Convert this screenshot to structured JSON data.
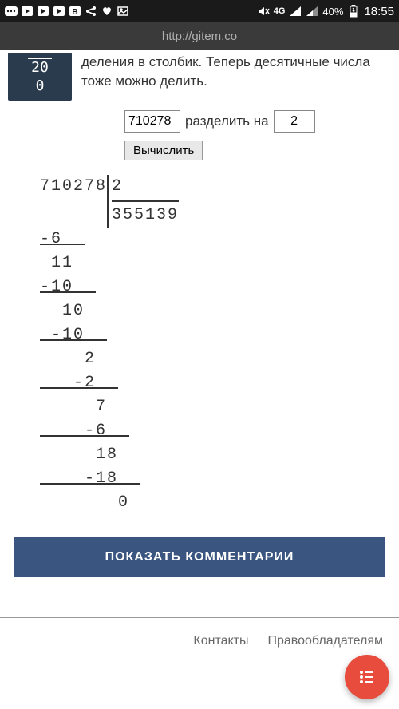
{
  "status": {
    "network": "4G",
    "battery": "40%",
    "time": "18:55"
  },
  "url": "http://gitem.co",
  "thumb": {
    "line1": "20",
    "line2": "0"
  },
  "intro_text": "десятичные числа тоже можно делить.",
  "intro_prefix": "деления в столбик. Теперь",
  "form": {
    "dividend": "710278",
    "label": "разделить на",
    "divisor": "2",
    "calc_label": "Вычислить"
  },
  "division": {
    "dividend": "710278",
    "divisor": "2",
    "quotient": "355139",
    "steps": [
      {
        "sub": "-6",
        "indent": 0,
        "bring": "11",
        "bindent": 1
      },
      {
        "sub": "-10",
        "indent": 0,
        "bring": "10",
        "bindent": 2
      },
      {
        "sub": "-10",
        "indent": 1,
        "bring": "2",
        "bindent": 4
      },
      {
        "sub": "-2",
        "indent": 3,
        "bring": "7",
        "bindent": 5
      },
      {
        "sub": "-6",
        "indent": 4,
        "bring": "18",
        "bindent": 5
      },
      {
        "sub": "-18",
        "indent": 4,
        "bring": "0",
        "bindent": 7
      }
    ]
  },
  "comments_label": "ПОКАЗАТЬ КОММЕНТАРИИ",
  "footer": {
    "contacts": "Контакты",
    "rights": "Правообладателям"
  }
}
